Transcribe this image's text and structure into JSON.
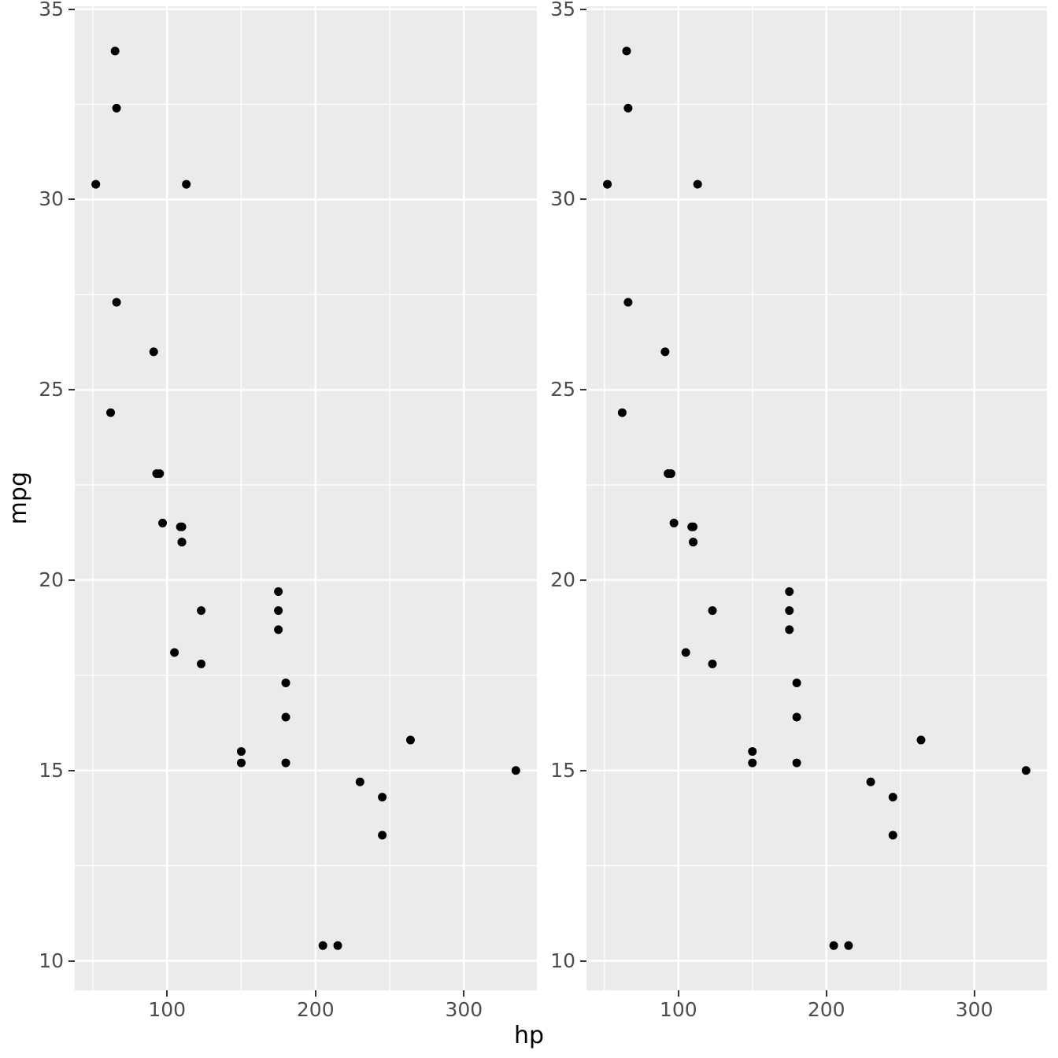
{
  "chart_data": {
    "type": "scatter",
    "title": "",
    "xlabel": "hp",
    "ylabel": "mpg",
    "panels": [
      "left",
      "right"
    ],
    "xlim": [
      37.85,
      349.15
    ],
    "ylim": [
      9.225,
      35.075
    ],
    "x_ticks": [
      100,
      200,
      300
    ],
    "x_tick_labels": [
      "100",
      "200",
      "300"
    ],
    "y_ticks": [
      10,
      15,
      20,
      25,
      30,
      35
    ],
    "y_tick_labels": [
      "10",
      "15",
      "20",
      "25",
      "30",
      "35"
    ],
    "x_minor": [
      50,
      150,
      250,
      350
    ],
    "y_minor": [
      12.5,
      17.5,
      22.5,
      27.5,
      32.5
    ],
    "grid": true,
    "legend": "none",
    "panel_bg": "#EBEBEB",
    "grid_color": "#FFFFFF",
    "tick_label_color": "#4D4D4D",
    "tick_mark_color": "#333333",
    "axis_title_color": "#000000",
    "point_color": "#000000",
    "point_radius": 5.5,
    "points": [
      [
        110,
        21.0
      ],
      [
        110,
        21.0
      ],
      [
        93,
        22.8
      ],
      [
        110,
        21.4
      ],
      [
        175,
        18.7
      ],
      [
        105,
        18.1
      ],
      [
        245,
        14.3
      ],
      [
        62,
        24.4
      ],
      [
        95,
        22.8
      ],
      [
        123,
        19.2
      ],
      [
        123,
        17.8
      ],
      [
        180,
        16.4
      ],
      [
        180,
        17.3
      ],
      [
        180,
        15.2
      ],
      [
        205,
        10.4
      ],
      [
        215,
        10.4
      ],
      [
        230,
        14.7
      ],
      [
        66,
        32.4
      ],
      [
        52,
        30.4
      ],
      [
        65,
        33.9
      ],
      [
        97,
        21.5
      ],
      [
        150,
        15.5
      ],
      [
        150,
        15.2
      ],
      [
        245,
        13.3
      ],
      [
        175,
        19.2
      ],
      [
        66,
        27.3
      ],
      [
        91,
        26.0
      ],
      [
        113,
        30.4
      ],
      [
        264,
        15.8
      ],
      [
        175,
        19.7
      ],
      [
        335,
        15.0
      ],
      [
        109,
        21.4
      ]
    ]
  }
}
